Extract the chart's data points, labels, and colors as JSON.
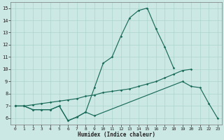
{
  "xlabel": "Humidex (Indice chaleur)",
  "bg_color": "#cce8e4",
  "grid_color": "#aad4cc",
  "line_color": "#1a6b5a",
  "ylim": [
    5.5,
    15.5
  ],
  "xlim": [
    -0.5,
    23.5
  ],
  "yticks": [
    6,
    7,
    8,
    9,
    10,
    11,
    12,
    13,
    14,
    15
  ],
  "xticks": [
    0,
    1,
    2,
    3,
    4,
    5,
    6,
    7,
    8,
    9,
    10,
    11,
    12,
    13,
    14,
    15,
    16,
    17,
    18,
    19,
    20,
    21,
    22,
    23
  ],
  "line1_x": [
    0,
    1,
    2,
    3,
    4,
    5,
    6,
    7,
    8,
    9,
    10,
    11,
    12,
    13,
    14,
    15,
    16,
    17,
    18
  ],
  "line1_y": [
    7,
    7,
    6.7,
    6.7,
    6.7,
    7,
    5.8,
    6.1,
    6.5,
    8.5,
    10.5,
    11,
    12.7,
    14.2,
    14.8,
    15,
    13.3,
    11.8,
    10.1
  ],
  "line2_x": [
    0,
    1,
    2,
    3,
    4,
    5,
    6,
    7,
    8,
    9,
    19,
    20,
    21,
    22,
    23
  ],
  "line2_y": [
    7,
    7,
    6.7,
    6.7,
    6.7,
    7,
    5.8,
    6.1,
    6.5,
    6.2,
    9.0,
    8.6,
    8.5,
    7.2,
    6.0
  ],
  "line3_x": [
    0,
    1,
    2,
    3,
    4,
    5,
    6,
    7,
    8,
    9,
    10,
    11,
    12,
    13,
    14,
    15,
    16,
    17,
    18,
    19,
    20
  ],
  "line3_y": [
    7,
    7,
    7.1,
    7.2,
    7.3,
    7.4,
    7.5,
    7.6,
    7.8,
    7.9,
    8.1,
    8.2,
    8.3,
    8.4,
    8.6,
    8.8,
    9.0,
    9.3,
    9.6,
    9.9,
    10.0
  ]
}
